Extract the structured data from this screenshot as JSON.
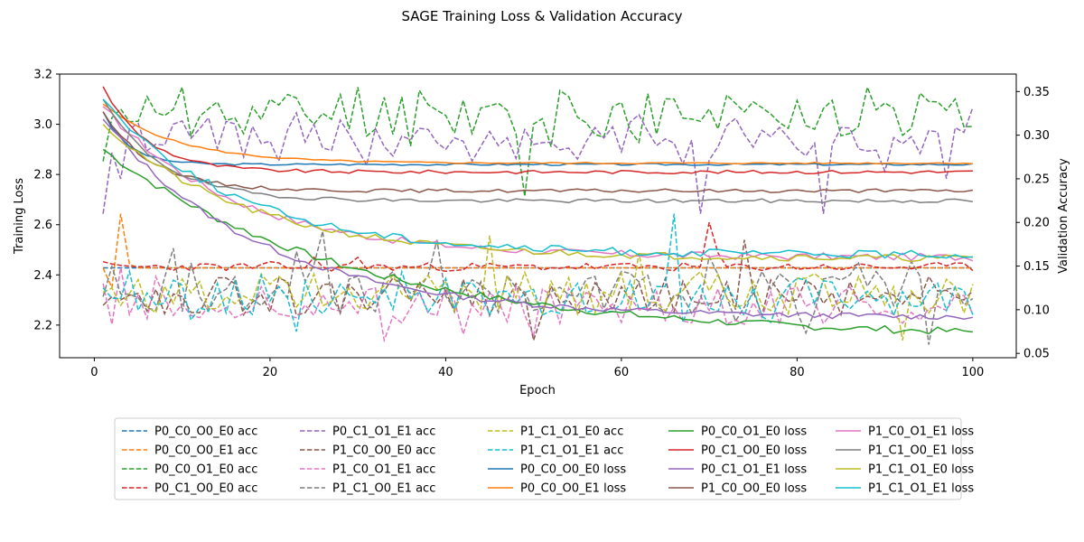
{
  "chart_data": {
    "type": "line",
    "title": "SAGE Training Loss & Validation Accuracy",
    "xlabel": "Epoch",
    "ylabel_left": "Training Loss",
    "ylabel_right": "Validation Accuracy",
    "xlim": [
      -3.95,
      104.95
    ],
    "ylim_left": [
      2.07,
      3.2
    ],
    "ylim_right": [
      0.045,
      0.37
    ],
    "xticks": [
      0,
      20,
      40,
      60,
      80,
      100
    ],
    "yticks_left": [
      2.2,
      2.4,
      2.6,
      2.8,
      3.0,
      3.2
    ],
    "yticks_right": [
      0.05,
      0.1,
      0.15,
      0.2,
      0.25,
      0.3,
      0.35
    ],
    "grid": false,
    "legend_position": "below",
    "x_start": 1,
    "x_end": 100,
    "series": [
      {
        "name": "P0_C0_O0_E0 acc",
        "axis": "right",
        "style": "dashed",
        "color": "#1f77b4",
        "kind": "const",
        "params": {
          "v": 0.148
        }
      },
      {
        "name": "P0_C0_O0_E1 acc",
        "axis": "right",
        "style": "dashed",
        "color": "#ff7f0e",
        "kind": "spiky",
        "params": {
          "v": 0.148,
          "spikes": [
            [
              2,
              0.125
            ],
            [
              3,
              0.21
            ],
            [
              4,
              0.152
            ]
          ]
        }
      },
      {
        "name": "P0_C0_O1_E0 acc",
        "axis": "right",
        "style": "dashed",
        "color": "#2ca02c",
        "kind": "noisy",
        "params": {
          "m": 0.325,
          "a": 0.028,
          "seed": 11,
          "lo": 0.23,
          "hi": 0.355,
          "p": [
            [
              1,
              0.27
            ],
            [
              2,
              0.32
            ],
            [
              3,
              0.33
            ],
            [
              30,
              0.355
            ],
            [
              49,
              0.23
            ],
            [
              70,
              0.33
            ],
            [
              84,
              0.34
            ],
            [
              88,
              0.355
            ]
          ]
        }
      },
      {
        "name": "P0_C1_O0_E0 acc",
        "axis": "right",
        "style": "dashed",
        "color": "#d62728",
        "kind": "spiky",
        "params": {
          "v": 0.149,
          "noise": 0.005,
          "seed": 23,
          "spikes": [
            [
              1,
              0.155
            ],
            [
              20,
              0.155
            ],
            [
              25,
              0.16
            ],
            [
              30,
              0.16
            ],
            [
              70,
              0.2
            ],
            [
              71,
              0.165
            ]
          ]
        }
      },
      {
        "name": "P0_C1_O1_E1 acc",
        "axis": "right",
        "style": "dashed",
        "color": "#9467bd",
        "kind": "noisy",
        "params": {
          "m": 0.295,
          "a": 0.025,
          "seed": 37,
          "lo": 0.205,
          "hi": 0.34,
          "p": [
            [
              1,
              0.21
            ],
            [
              2,
              0.28
            ],
            [
              3,
              0.25
            ],
            [
              13,
              0.32
            ],
            [
              69,
              0.21
            ],
            [
              83,
              0.21
            ],
            [
              97,
              0.25
            ]
          ]
        }
      },
      {
        "name": "P1_C0_O0_E0 acc",
        "axis": "right",
        "style": "dashed",
        "color": "#8c564b",
        "kind": "noisy",
        "params": {
          "m": 0.115,
          "a": 0.022,
          "seed": 53,
          "lo": 0.065,
          "hi": 0.18,
          "p": [
            [
              1,
              0.105
            ],
            [
              2,
              0.115
            ],
            [
              74,
              0.18
            ],
            [
              50,
              0.065
            ]
          ]
        }
      },
      {
        "name": "P1_C0_O1_E1 acc",
        "axis": "right",
        "style": "dashed",
        "color": "#e377c2",
        "kind": "noisy",
        "params": {
          "m": 0.105,
          "a": 0.022,
          "seed": 71,
          "lo": 0.065,
          "hi": 0.17,
          "p": [
            [
              1,
              0.13
            ],
            [
              33,
              0.065
            ],
            [
              50,
              0.07
            ]
          ]
        }
      },
      {
        "name": "P1_C1_O0_E1 acc",
        "axis": "right",
        "style": "dashed",
        "color": "#7f7f7f",
        "kind": "noisy",
        "params": {
          "m": 0.12,
          "a": 0.025,
          "seed": 89,
          "lo": 0.06,
          "hi": 0.19,
          "p": [
            [
              1,
              0.115
            ],
            [
              26,
              0.19
            ],
            [
              39,
              0.18
            ],
            [
              95,
              0.06
            ]
          ]
        }
      },
      {
        "name": "P1_C1_O1_E0 acc",
        "axis": "right",
        "style": "dashed",
        "color": "#bcbd22",
        "kind": "noisy",
        "params": {
          "m": 0.12,
          "a": 0.025,
          "seed": 97,
          "lo": 0.065,
          "hi": 0.185,
          "p": [
            [
              1,
              0.12
            ],
            [
              45,
              0.185
            ],
            [
              62,
              0.165
            ],
            [
              92,
              0.065
            ]
          ]
        }
      },
      {
        "name": "P1_C1_O1_E1 acc",
        "axis": "right",
        "style": "dashed",
        "color": "#17becf",
        "kind": "noisy",
        "params": {
          "m": 0.115,
          "a": 0.022,
          "seed": 101,
          "lo": 0.075,
          "hi": 0.21,
          "p": [
            [
              1,
              0.125
            ],
            [
              66,
              0.21
            ],
            [
              23,
              0.075
            ]
          ]
        }
      },
      {
        "name": "P0_C0_O0_E0 loss",
        "axis": "left",
        "style": "solid",
        "color": "#1f77b4",
        "kind": "decay",
        "params": {
          "s": 3.05,
          "e": 2.84,
          "k": 0.35,
          "n": 0.004,
          "seed": 3
        }
      },
      {
        "name": "P0_C0_O0_E1 loss",
        "axis": "left",
        "style": "solid",
        "color": "#ff7f0e",
        "kind": "decay",
        "params": {
          "s": 3.08,
          "e": 2.845,
          "k": 0.12,
          "n": 0.003,
          "seed": 5
        }
      },
      {
        "name": "P0_C0_O1_E0 loss",
        "axis": "left",
        "style": "solid",
        "color": "#2ca02c",
        "kind": "decay",
        "params": {
          "s": 2.9,
          "e": 2.15,
          "k": 0.035,
          "n": 0.015,
          "seed": 7
        }
      },
      {
        "name": "P0_C1_O0_E0 loss",
        "axis": "left",
        "style": "solid",
        "color": "#d62728",
        "kind": "decay",
        "params": {
          "s": 3.15,
          "e": 2.81,
          "k": 0.2,
          "n": 0.007,
          "seed": 9
        }
      },
      {
        "name": "P0_C1_O1_E1 loss",
        "axis": "left",
        "style": "solid",
        "color": "#9467bd",
        "kind": "decay",
        "params": {
          "s": 3.02,
          "e": 2.23,
          "k": 0.055,
          "n": 0.012,
          "seed": 13
        }
      },
      {
        "name": "P1_C0_O0_E0 loss",
        "axis": "left",
        "style": "solid",
        "color": "#8c564b",
        "kind": "decay",
        "params": {
          "s": 3.05,
          "e": 2.735,
          "k": 0.18,
          "n": 0.007,
          "seed": 15
        }
      },
      {
        "name": "P1_C0_O1_E1 loss",
        "axis": "left",
        "style": "solid",
        "color": "#e377c2",
        "kind": "decay",
        "params": {
          "s": 3.07,
          "e": 2.47,
          "k": 0.065,
          "n": 0.015,
          "seed": 17
        }
      },
      {
        "name": "P1_C1_O0_E1 loss",
        "axis": "left",
        "style": "solid",
        "color": "#7f7f7f",
        "kind": "decay",
        "params": {
          "s": 3.1,
          "e": 2.695,
          "k": 0.15,
          "n": 0.008,
          "seed": 19
        }
      },
      {
        "name": "P1_C1_O1_E0 loss",
        "axis": "left",
        "style": "solid",
        "color": "#bcbd22",
        "kind": "decay",
        "params": {
          "s": 3.0,
          "e": 2.465,
          "k": 0.06,
          "n": 0.014,
          "seed": 21
        }
      },
      {
        "name": "P1_C1_O1_E1 loss",
        "axis": "left",
        "style": "solid",
        "color": "#17becf",
        "kind": "decay",
        "params": {
          "s": 3.1,
          "e": 2.48,
          "k": 0.065,
          "n": 0.016,
          "seed": 25
        }
      }
    ]
  }
}
